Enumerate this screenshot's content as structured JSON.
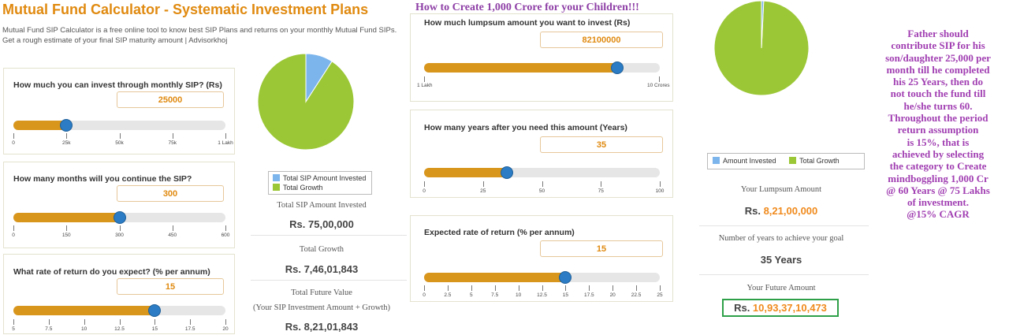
{
  "header": {
    "title": "Mutual Fund Calculator - Systematic Investment Plans",
    "desc1": "Mutual Fund SIP Calculator is a free online tool to know best SIP Plans and returns on your monthly Mutual Fund SIPs.",
    "desc2": "Get a rough estimate of your final SIP maturity amount | Advisorkhoj"
  },
  "sip_calc": {
    "q1": {
      "label": "How much you can invest through monthly SIP? (Rs)",
      "value": "25000",
      "fraction": 0.25,
      "ticks": [
        "0",
        "25k",
        "50k",
        "75k",
        "1 Lakh"
      ]
    },
    "q2": {
      "label": "How many months will you continue the SIP?",
      "value": "300",
      "fraction": 0.5,
      "ticks": [
        "0",
        "150",
        "300",
        "450",
        "600"
      ]
    },
    "q3": {
      "label": "What rate of return do you expect? (% per annum)",
      "value": "15",
      "fraction": 0.667,
      "ticks": [
        "5",
        "7.5",
        "10",
        "12.5",
        "15",
        "17.5",
        "20"
      ]
    }
  },
  "sip_results": {
    "legend": [
      "Total SIP Amount Invested",
      "Total Growth"
    ],
    "invested_label": "Total SIP Amount Invested",
    "invested_value": "Rs. 75,00,000",
    "growth_label": "Total Growth",
    "growth_value": "Rs. 7,46,01,843",
    "future_label": "Total Future Value",
    "future_sub": "(Your SIP Investment Amount + Growth)",
    "future_value": "Rs. 8,21,01,843",
    "invested_share": 0.0914
  },
  "lumpsum_calc": {
    "heading": "How to Create 1,000 Crore for your Children!!!",
    "q1": {
      "label": "How much lumpsum amount you want to invest (Rs)",
      "value": "82100000",
      "fraction": 0.818,
      "min_label": "1 Lakh",
      "max_label": "10 Crores"
    },
    "q2": {
      "label": "How many years after you need this amount (Years)",
      "value": "35",
      "fraction": 0.35,
      "ticks": [
        "0",
        "25",
        "50",
        "75",
        "100"
      ]
    },
    "q3": {
      "label": "Expected rate of return (% per annum)",
      "value": "15",
      "fraction": 0.6,
      "ticks": [
        "0",
        "2.5",
        "5",
        "7.5",
        "10",
        "12.5",
        "15",
        "17.5",
        "20",
        "22.5",
        "25"
      ]
    }
  },
  "lumpsum_results": {
    "legend": [
      "Amount Invested",
      "Total Growth"
    ],
    "lumpsum_label": "Your Lumpsum Amount",
    "lumpsum_prefix": "Rs. ",
    "lumpsum_value": "8,21,00,000",
    "years_label": "Number of years to achieve your goal",
    "years_value": "35 Years",
    "future_label": "Your Future Amount",
    "future_prefix": "Rs. ",
    "future_value": "10,93,37,10,473",
    "invested_share": 0.0075
  },
  "note_lines": [
    "Father should",
    "contribute SIP for his",
    "son/daughter 25,000 per",
    "month till he completed",
    "his 25 Years, then do",
    "not touch the fund till",
    "he/she turns 60.",
    "Throughout the period",
    "return assumption",
    "is 15%, that is",
    "achieved by selecting",
    "the category to Create",
    "mindboggling 1,000 Cr",
    "@ 60 Years @ 75 Lakhs",
    "of investment.",
    "@15% CAGR"
  ],
  "colors": {
    "invested": "#7cb5ec",
    "growth": "#9bc736",
    "slider_fill": "#d9961c",
    "knob": "#2b7cc4",
    "accent": "#e08a10",
    "note": "#a13fb2"
  }
}
